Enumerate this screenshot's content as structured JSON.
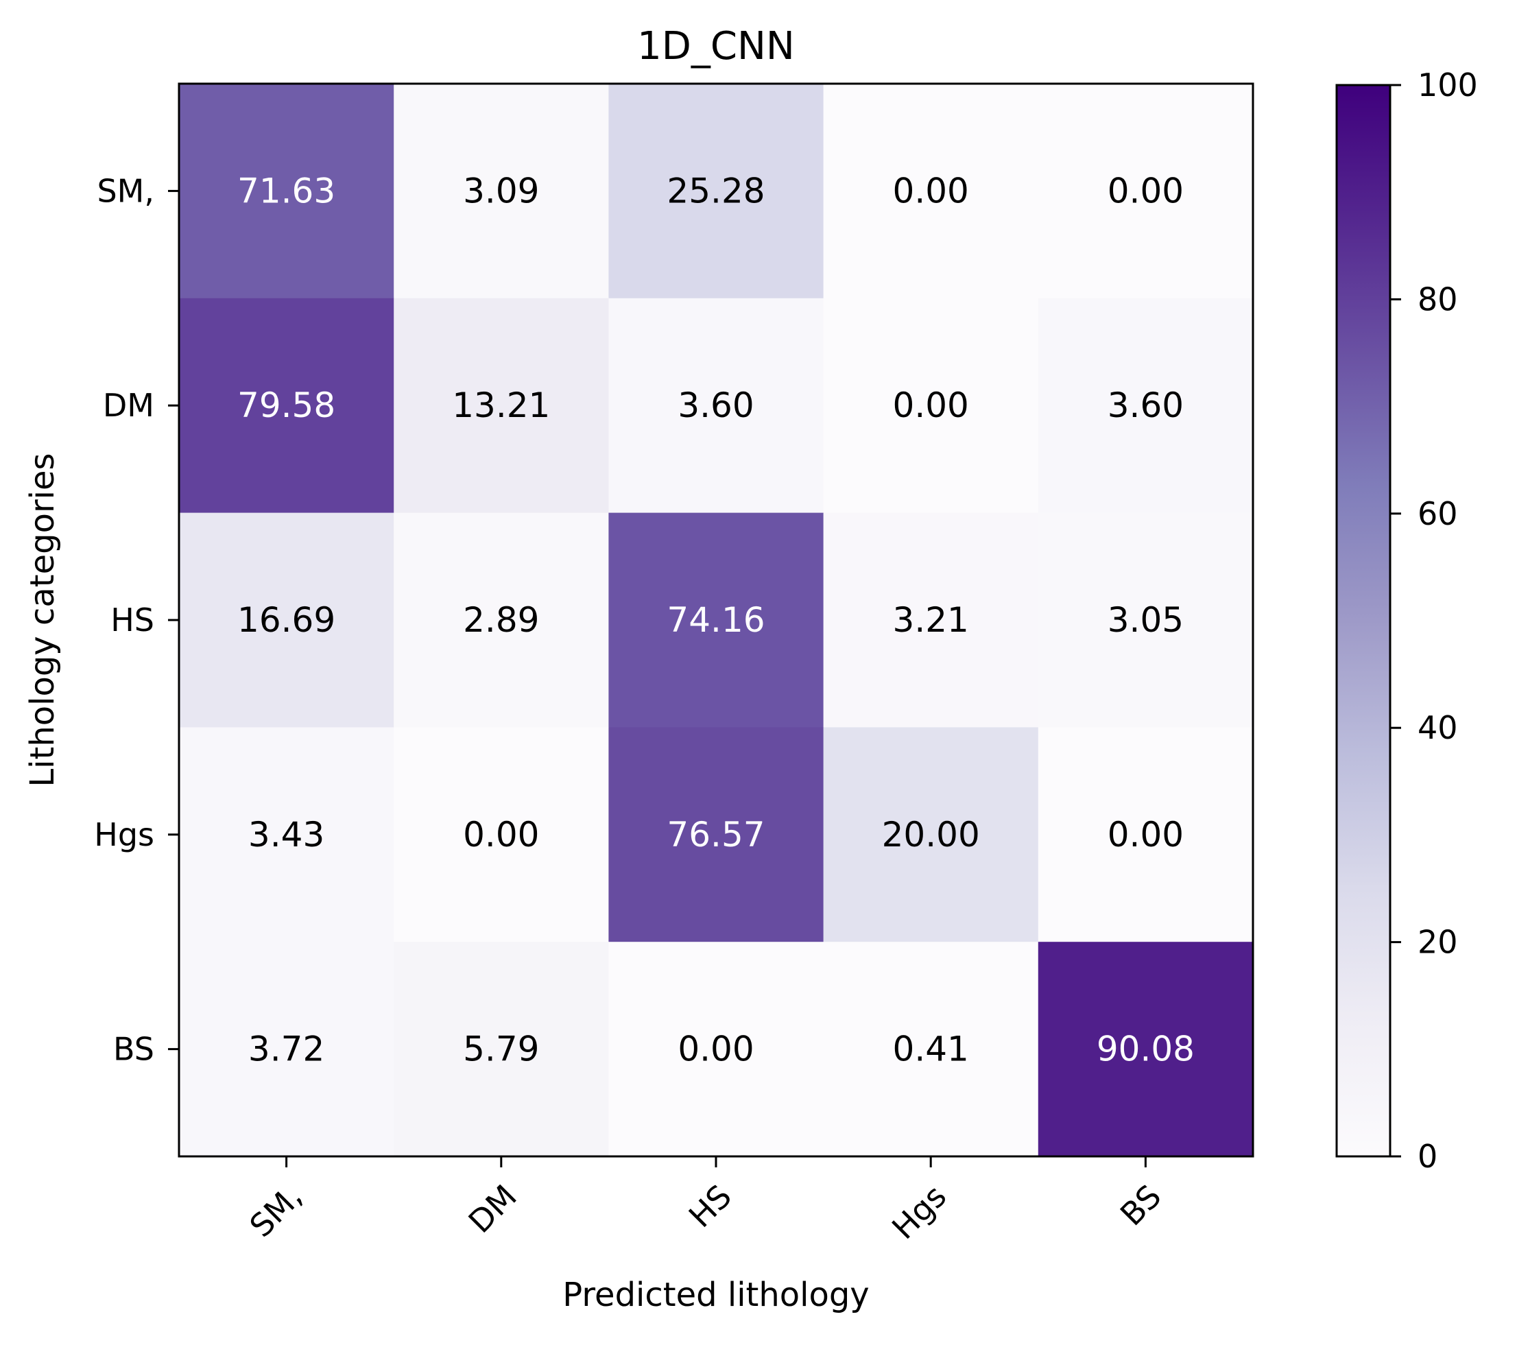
{
  "chart_data": {
    "type": "heatmap",
    "title": "1D_CNN",
    "xlabel": "Predicted lithology",
    "ylabel": "Lithology categories",
    "x_categories": [
      "SM,",
      "DM",
      "HS",
      "Hgs",
      "BS"
    ],
    "y_categories": [
      "SM,",
      "DM",
      "HS",
      "Hgs",
      "BS"
    ],
    "values": [
      [
        71.63,
        3.09,
        25.28,
        0.0,
        0.0
      ],
      [
        79.58,
        13.21,
        3.6,
        0.0,
        3.6
      ],
      [
        16.69,
        2.89,
        74.16,
        3.21,
        3.05
      ],
      [
        3.43,
        0.0,
        76.57,
        20.0,
        0.0
      ],
      [
        3.72,
        5.79,
        0.0,
        0.41,
        90.08
      ]
    ],
    "value_format_decimals": 2,
    "colormap": "Purples",
    "colorbar": {
      "range": [
        0,
        100
      ],
      "ticks": [
        0,
        20,
        40,
        60,
        80,
        100
      ]
    },
    "grid": false
  }
}
